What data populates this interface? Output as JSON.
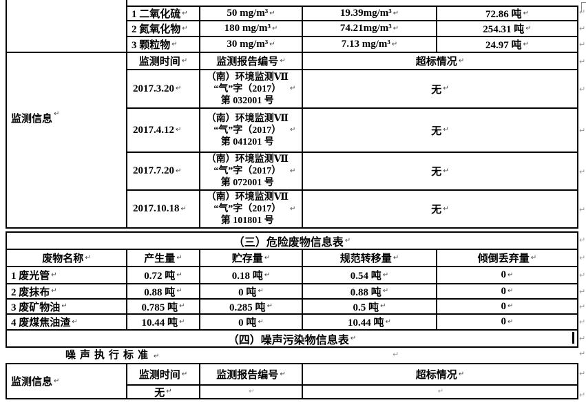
{
  "marks": {
    "pilcrow": "↵"
  },
  "air_section": {
    "pollutants": [
      {
        "name": "1 二氧化硫",
        "limit": "50 mg/m³",
        "concentration": "19.39mg/m³",
        "total": "72.86 吨"
      },
      {
        "name": "2 氮氧化物",
        "limit": "180 mg/m³",
        "concentration": "74.21mg/m³",
        "total": "254.31 吨"
      },
      {
        "name": "3 颗粒物",
        "limit": "30 mg/m³",
        "concentration": "7.13 mg/m³",
        "total": "24.97 吨"
      }
    ],
    "label": "监测信息",
    "headers": {
      "time": "监测时间",
      "report": "监测报告编号",
      "exceed": "超标情况"
    },
    "monitoring": [
      {
        "date": "2017.3.20",
        "report": "（南）环境监测Ⅶ\n“气”字（2017）\n第 032001 号",
        "exceed": "无"
      },
      {
        "date": "2017.4.12",
        "report": "（南）环境监测Ⅶ\n“气”字（2017）\n第 041201 号",
        "exceed": "无"
      },
      {
        "date": "2017.7.20",
        "report": "（南）环境监测Ⅶ\n“气”字（2017）\n第 072001 号",
        "exceed": "无"
      },
      {
        "date": "2017.10.18",
        "report": "（南）环境监测Ⅶ\n“气”字（2017）\n第 101801 号",
        "exceed": "无"
      }
    ]
  },
  "hazard_section": {
    "title": "（三）危险废物信息表",
    "headers": [
      "废物名称",
      "产生量",
      "贮存量",
      "规范转移量",
      "倾倒丢弃量"
    ],
    "rows": [
      {
        "name": "1 废光管",
        "produced": "0.72 吨",
        "stored": "0.18 吨",
        "transferred": "0.54 吨",
        "dumped": "0"
      },
      {
        "name": "2 废抹布",
        "produced": "0.88 吨",
        "stored": "0 吨",
        "transferred": "0.88 吨",
        "dumped": "0"
      },
      {
        "name": "3 废矿物油",
        "produced": "0.785 吨",
        "stored": "0.285 吨",
        "transferred": "0.5 吨",
        "dumped": "0"
      },
      {
        "name": "4 废煤焦油渣",
        "produced": "10.44 吨",
        "stored": "0 吨",
        "transferred": "10.44 吨",
        "dumped": "0"
      }
    ]
  },
  "noise_section": {
    "title": "（四）噪声污染物信息表",
    "standard_label": "噪声执行标准",
    "label": "监测信息",
    "headers": {
      "time": "监测时间",
      "report": "监测报告编号",
      "exceed": "超标情况"
    },
    "row": {
      "time": "无"
    }
  }
}
